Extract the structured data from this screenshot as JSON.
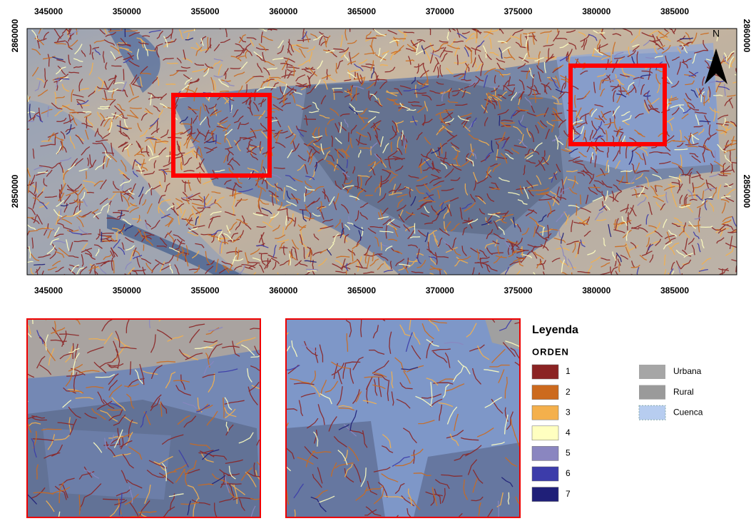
{
  "map": {
    "x_labels": [
      345000,
      350000,
      355000,
      360000,
      365000,
      370000,
      375000,
      380000,
      385000
    ],
    "y_labels": [
      2860000,
      2850000
    ],
    "north": "N"
  },
  "legend": {
    "title": "Leyenda",
    "subtitle": "ORDEN",
    "orden": [
      {
        "label": "1",
        "color": "#8b2323"
      },
      {
        "label": "2",
        "color": "#cc6a1e"
      },
      {
        "label": "3",
        "color": "#f4b04c"
      },
      {
        "label": "4",
        "color": "#ffffc0"
      },
      {
        "label": "5",
        "color": "#8a86c0"
      },
      {
        "label": "6",
        "color": "#3c3caa"
      },
      {
        "label": "7",
        "color": "#1f1f78"
      }
    ],
    "areas": [
      {
        "label": "Urbana",
        "color": "#a6a6a6"
      },
      {
        "label": "Rural",
        "color": "#9a9a9a"
      },
      {
        "label": "Cuenca",
        "color": "#b7cdf0"
      }
    ]
  }
}
